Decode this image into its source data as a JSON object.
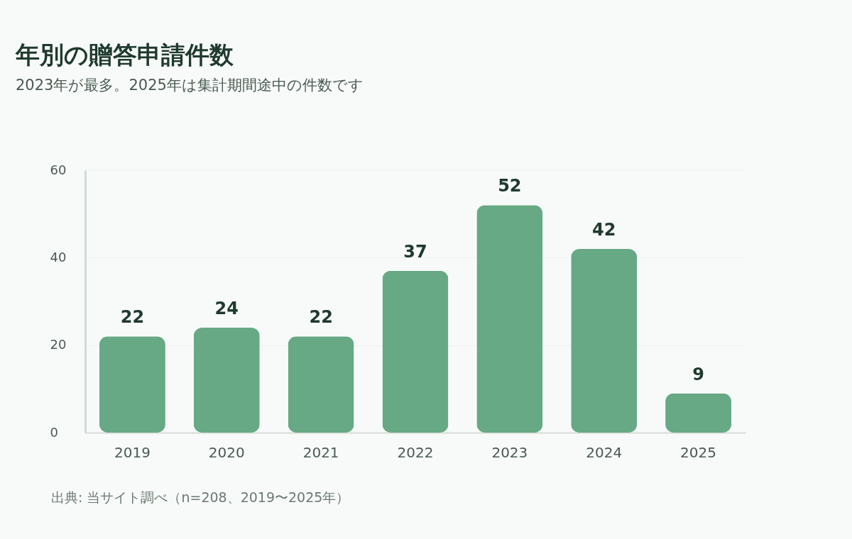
{
  "chart_data": {
    "type": "bar",
    "title": "年別の贈答申請件数",
    "subtitle": "2023年が最多。2025年は集計期間途中の件数です",
    "categories": [
      "2019",
      "2020",
      "2021",
      "2022",
      "2023",
      "2024",
      "2025"
    ],
    "values": [
      22,
      24,
      22,
      37,
      52,
      42,
      9
    ],
    "color": "#67a984",
    "ylim": [
      0,
      60
    ],
    "yticks": [
      0,
      20,
      40,
      60
    ],
    "grid": "y",
    "data_labels": true,
    "annotations": [
      "出典: 当サイト調べ（n=208、2019〜2025年）"
    ]
  }
}
